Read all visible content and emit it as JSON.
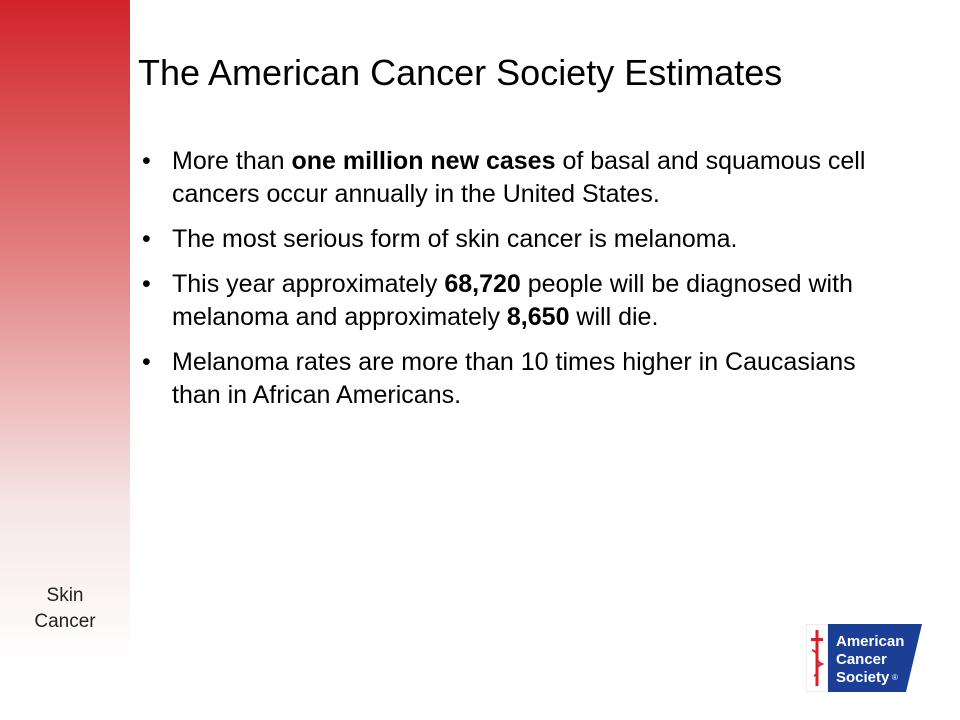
{
  "slide": {
    "title": "The American Cancer Society Estimates",
    "side_label_line1": "Skin",
    "side_label_line2": "Cancer"
  },
  "bullets": [
    {
      "pre": "More than ",
      "bold": "one million new cases",
      "post": " of basal and squamous cell cancers occur annually in the United States."
    },
    {
      "text": "The most serious form of skin cancer is melanoma."
    },
    {
      "pre": "This year approximately ",
      "bold1": "68,720",
      "mid": " people will be diagnosed with melanoma and approximately ",
      "bold2": "8,650",
      "post": " will die."
    },
    {
      "text": "Melanoma rates are more than 10 times higher in Caucasians than in African Americans."
    }
  ],
  "logo": {
    "line1": "American",
    "line2": "Cancer",
    "line3": "Society",
    "registered": "®",
    "brand_blue": "#1b3f94",
    "brand_red": "#d2232a"
  }
}
